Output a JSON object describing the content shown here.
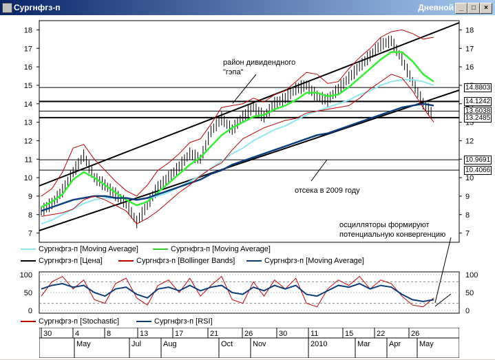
{
  "window": {
    "title": "Сургнфгз-п",
    "period": "Дневной",
    "btn_min": "_",
    "btn_max": "□",
    "btn_close": "×"
  },
  "annotations": {
    "dividend_gap_line1": "район дивидендного",
    "dividend_gap_line2": "\"гэпа\"",
    "cutoff_2009": "отсека в 2009 году",
    "oscillators_line1": "осцилляторы формируют",
    "oscillators_line2": "потенциальную конвергенцию"
  },
  "legend_main": [
    {
      "label": "Сургнфгз-п [Moving Average]",
      "color": "#8fe6f0"
    },
    {
      "label": "Сургнфгз-п [Moving Average]",
      "color": "#33cc33"
    },
    {
      "label": "Сургнфгз-п [Цена]",
      "color": "#000000"
    },
    {
      "label": "Сургнфгз-п [Bollinger Bands]",
      "color": "#c00000"
    },
    {
      "label": "Сургнфгз-п [Moving Average]",
      "color": "#0b3d7a"
    }
  ],
  "legend_osc": [
    {
      "label": "Сургнфгз-п [Stochastic]",
      "color": "#c00000"
    },
    {
      "label": "Сургнфгз-п [RSI]",
      "color": "#0b3d7a"
    }
  ],
  "price_labels": [
    "14.8803",
    "14.1242",
    "13.6038",
    "13.2485",
    "10.9691",
    "10.4066"
  ],
  "dates": {
    "days": [
      "30",
      "4",
      "8",
      "13",
      "17",
      "21",
      "26",
      "30",
      "11",
      "15",
      "22",
      "26"
    ],
    "months": [
      "May",
      "Jul",
      "Aug",
      "Oct",
      "Nov",
      "2010",
      "Mar",
      "Apr",
      "May"
    ]
  },
  "chart_data": [
    {
      "type": "line",
      "title": "",
      "y_ticks": [
        7,
        8,
        9,
        10,
        11,
        12,
        13,
        14,
        15,
        16,
        17,
        18
      ],
      "ylim": [
        6.5,
        18.5
      ],
      "horizontal_levels": [
        14.8803,
        14.1242,
        13.6038,
        13.2485,
        10.9691,
        10.4066
      ],
      "series": [
        {
          "name": "Сургнфгз-п [Цена]",
          "values": [
            8.2,
            8.6,
            9.3,
            10.3,
            11.2,
            10.0,
            9.6,
            9.1,
            8.6,
            7.6,
            8.5,
            9.5,
            10.0,
            10.6,
            11.3,
            11.0,
            12.5,
            13.2,
            12.6,
            13.3,
            13.8,
            13.3,
            14.0,
            14.3,
            14.8,
            15.0,
            14.4,
            14.2,
            14.8,
            15.4,
            16.0,
            16.6,
            17.2,
            17.4,
            16.4,
            15.2,
            14.0,
            13.4
          ]
        },
        {
          "name": "Сургнфгз-п [Moving Average]",
          "values": [
            8.4,
            8.7,
            9.1,
            9.9,
            10.3,
            10.0,
            9.6,
            9.2,
            8.8,
            8.5,
            8.7,
            9.2,
            9.7,
            10.2,
            10.7,
            11.1,
            11.7,
            12.3,
            12.7,
            13.0,
            13.3,
            13.4,
            13.7,
            13.9,
            14.2,
            14.6,
            14.6,
            14.4,
            14.5,
            14.9,
            15.4,
            15.9,
            16.4,
            16.8,
            16.8,
            16.3,
            15.6,
            15.2
          ]
        },
        {
          "name": "Сургнфгз-п [Moving Average]",
          "values": [
            7.5,
            7.7,
            8.0,
            8.3,
            8.6,
            8.8,
            8.9,
            8.9,
            8.9,
            8.8,
            8.9,
            9.0,
            9.2,
            9.5,
            9.8,
            10.1,
            10.5,
            10.9,
            11.3,
            11.6,
            12.0,
            12.3,
            12.6,
            12.8,
            13.1,
            13.4,
            13.6,
            13.8,
            14.0,
            14.2,
            14.5,
            14.7,
            15.0,
            15.2,
            15.3,
            15.3,
            15.2,
            15.0
          ]
        },
        {
          "name": "Сургнфгз-п [Moving Average]",
          "values": [
            8.2,
            8.4,
            8.6,
            8.8,
            8.9,
            9.0,
            9.0,
            8.9,
            8.9,
            8.8,
            8.9,
            9.1,
            9.3,
            9.5,
            9.7,
            9.9,
            10.2,
            10.4,
            10.7,
            10.9,
            11.1,
            11.3,
            11.5,
            11.7,
            11.9,
            12.1,
            12.3,
            12.4,
            12.6,
            12.8,
            13.0,
            13.2,
            13.4,
            13.6,
            13.8,
            13.9,
            14.0,
            13.9
          ]
        },
        {
          "name": "Сургнфгз-п [Bollinger Bands]",
          "values": [
            9.0,
            9.4,
            10.3,
            11.6,
            11.8,
            11.0,
            10.4,
            9.8,
            9.3,
            9.0,
            9.6,
            10.4,
            10.8,
            11.3,
            11.9,
            12.1,
            12.9,
            13.8,
            13.9,
            14.0,
            14.3,
            14.1,
            14.5,
            14.7,
            15.2,
            15.7,
            15.6,
            15.1,
            15.2,
            15.9,
            16.5,
            17.0,
            17.6,
            17.9,
            18.0,
            17.8,
            17.5,
            17.6
          ]
        },
        {
          "name": "Сургнфгз-п [Bollinger Bands]",
          "values": [
            7.9,
            8.0,
            8.1,
            8.3,
            8.8,
            9.0,
            8.8,
            8.5,
            8.2,
            7.5,
            7.8,
            8.2,
            8.7,
            9.2,
            9.6,
            10.1,
            10.5,
            10.8,
            11.5,
            12.1,
            12.4,
            12.7,
            12.9,
            13.1,
            13.2,
            13.5,
            13.6,
            13.7,
            13.8,
            13.9,
            14.3,
            14.8,
            15.2,
            15.6,
            15.4,
            14.7,
            13.8,
            13.0
          ]
        }
      ]
    },
    {
      "type": "line",
      "title": "",
      "y_ticks": [
        0,
        50,
        100
      ],
      "ylim": [
        0,
        100
      ],
      "series": [
        {
          "name": "Сургнфгз-п [Stochastic]",
          "values": [
            40,
            80,
            95,
            60,
            85,
            30,
            20,
            75,
            90,
            35,
            15,
            70,
            85,
            50,
            90,
            40,
            70,
            95,
            30,
            20,
            80,
            40,
            85,
            60,
            90,
            20,
            10,
            60,
            85,
            70,
            95,
            60,
            85,
            75,
            40,
            15,
            10,
            35
          ]
        },
        {
          "name": "Сургнфгз-п [RSI]",
          "values": [
            60,
            70,
            75,
            65,
            70,
            50,
            40,
            60,
            65,
            45,
            35,
            60,
            65,
            55,
            70,
            55,
            65,
            70,
            50,
            45,
            65,
            55,
            70,
            60,
            70,
            45,
            40,
            55,
            70,
            65,
            75,
            60,
            70,
            65,
            45,
            30,
            25,
            30
          ]
        }
      ]
    }
  ]
}
